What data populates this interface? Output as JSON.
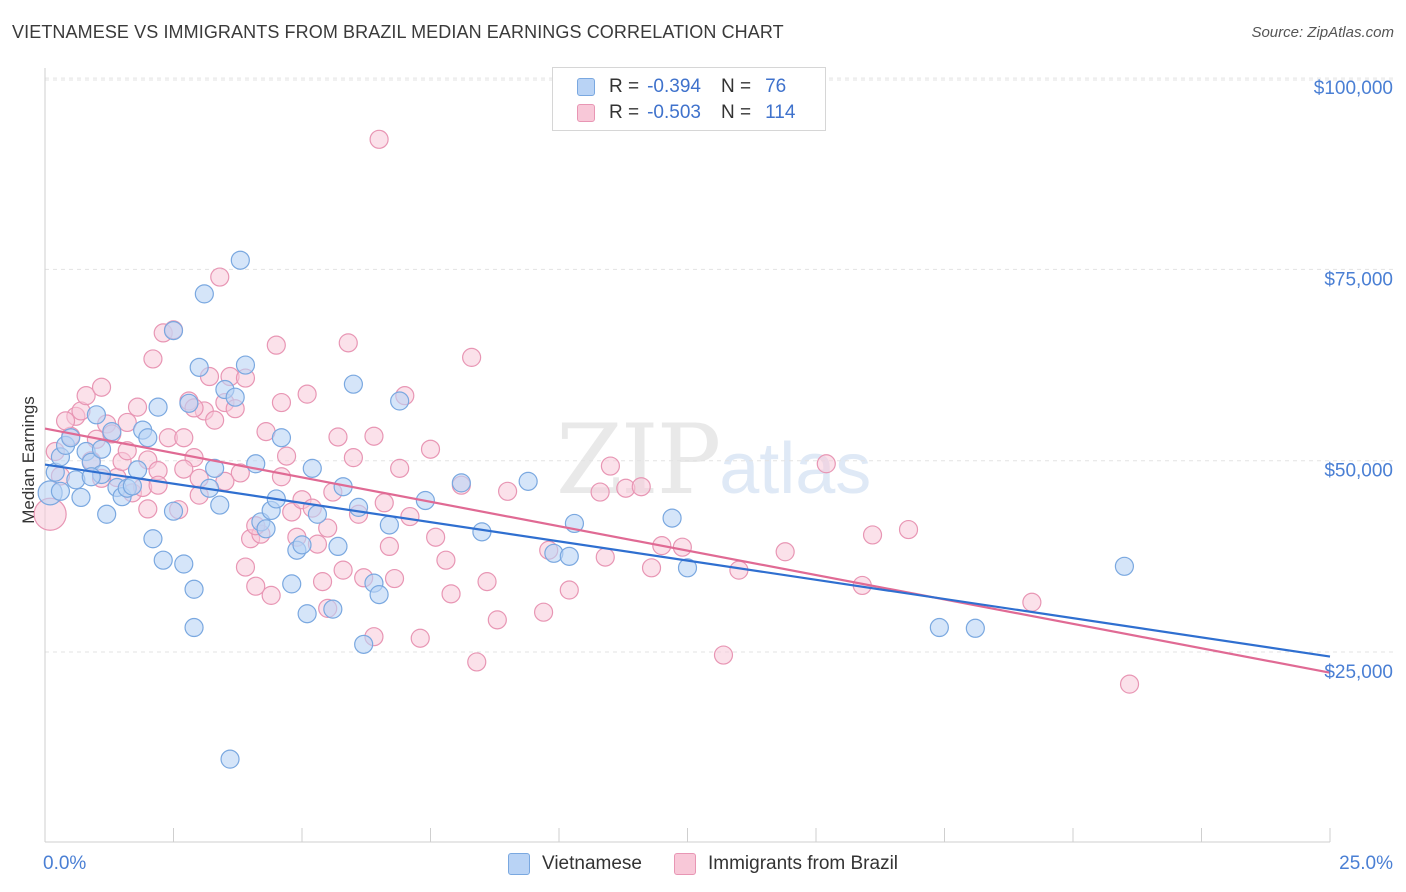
{
  "title": "VIETNAMESE VS IMMIGRANTS FROM BRAZIL MEDIAN EARNINGS CORRELATION CHART",
  "source": "Source: ZipAtlas.com",
  "watermark": {
    "zip": "ZIP",
    "atlas": "atlas"
  },
  "legend": {
    "rows": [
      {
        "r_label": "R =",
        "r_value": "-0.394",
        "n_label": "N =",
        "n_value": "76"
      },
      {
        "r_label": "R =",
        "r_value": "-0.503",
        "n_label": "N =",
        "n_value": "114"
      }
    ]
  },
  "bottom_legend": [
    "Vietnamese",
    "Immigrants from Brazil"
  ],
  "colors": {
    "blue_fill": "#b9d3f5",
    "blue_stroke": "#7aa8e0",
    "blue_line": "#2f6fd0",
    "pink_fill": "#f8c8d8",
    "pink_stroke": "#e896b4",
    "pink_line": "#e06a94",
    "grid": "#e3e3e3",
    "tick_text": "#4a7fd4"
  },
  "chart_data": {
    "type": "scatter",
    "title": "VIETNAMESE VS IMMIGRANTS FROM BRAZIL MEDIAN EARNINGS CORRELATION CHART",
    "xlabel": "",
    "ylabel": "Median Earnings",
    "xlim": [
      0,
      25
    ],
    "ylim": [
      0,
      105000
    ],
    "x_tick_labels": [
      "0.0%",
      "25.0%"
    ],
    "y_ticks": [
      25000,
      50000,
      75000,
      100000
    ],
    "y_tick_labels": [
      "$25,000",
      "$50,000",
      "$75,000",
      "$100,000"
    ],
    "grid": true,
    "legend_position": "top-center",
    "series": [
      {
        "name": "Vietnamese",
        "trend": {
          "x": [
            0,
            25
          ],
          "y": [
            49500,
            24400
          ]
        },
        "points": [
          [
            0.1,
            45800
          ],
          [
            0.2,
            48500
          ],
          [
            0.3,
            50500
          ],
          [
            0.4,
            52000
          ],
          [
            0.5,
            53000
          ],
          [
            0.6,
            47500
          ],
          [
            0.7,
            45200
          ],
          [
            0.8,
            51200
          ],
          [
            0.9,
            49800
          ],
          [
            1.0,
            56000
          ],
          [
            1.1,
            48200
          ],
          [
            1.1,
            51500
          ],
          [
            1.2,
            43000
          ],
          [
            1.3,
            53800
          ],
          [
            1.4,
            46500
          ],
          [
            1.5,
            45300
          ],
          [
            1.6,
            46400
          ],
          [
            1.8,
            48800
          ],
          [
            1.9,
            54000
          ],
          [
            2.0,
            53000
          ],
          [
            2.1,
            39800
          ],
          [
            2.2,
            57000
          ],
          [
            2.3,
            37000
          ],
          [
            2.5,
            67000
          ],
          [
            2.7,
            36500
          ],
          [
            2.8,
            57500
          ],
          [
            2.9,
            28200
          ],
          [
            2.9,
            33200
          ],
          [
            3.0,
            62200
          ],
          [
            3.1,
            71800
          ],
          [
            3.2,
            46400
          ],
          [
            3.3,
            49000
          ],
          [
            3.4,
            44200
          ],
          [
            3.5,
            59300
          ],
          [
            3.6,
            11000
          ],
          [
            3.7,
            58300
          ],
          [
            3.8,
            76200
          ],
          [
            3.9,
            62500
          ],
          [
            4.1,
            49600
          ],
          [
            4.2,
            42000
          ],
          [
            4.3,
            41100
          ],
          [
            4.4,
            43500
          ],
          [
            4.5,
            45000
          ],
          [
            4.6,
            53000
          ],
          [
            4.8,
            33900
          ],
          [
            4.9,
            38300
          ],
          [
            5.0,
            39000
          ],
          [
            5.1,
            30000
          ],
          [
            5.2,
            49000
          ],
          [
            5.3,
            43000
          ],
          [
            5.6,
            30600
          ],
          [
            5.7,
            38800
          ],
          [
            5.8,
            46600
          ],
          [
            6.0,
            60000
          ],
          [
            6.1,
            43900
          ],
          [
            6.2,
            26000
          ],
          [
            6.4,
            34000
          ],
          [
            6.5,
            32500
          ],
          [
            6.7,
            41600
          ],
          [
            6.9,
            57800
          ],
          [
            7.4,
            44800
          ],
          [
            8.1,
            47100
          ],
          [
            8.5,
            40700
          ],
          [
            9.4,
            47300
          ],
          [
            9.9,
            37900
          ],
          [
            10.2,
            37500
          ],
          [
            10.3,
            41800
          ],
          [
            12.2,
            42500
          ],
          [
            12.5,
            36000
          ],
          [
            17.4,
            28200
          ],
          [
            18.1,
            28100
          ],
          [
            21.0,
            36200
          ],
          [
            0.3,
            46000
          ],
          [
            0.9,
            47900
          ],
          [
            1.7,
            46700
          ],
          [
            2.5,
            43400
          ]
        ]
      },
      {
        "name": "Immigrants from Brazil",
        "trend": {
          "x": [
            0,
            25
          ],
          "y": [
            54200,
            22300
          ]
        },
        "points": [
          [
            0.1,
            43000
          ],
          [
            0.3,
            48000
          ],
          [
            0.5,
            53200
          ],
          [
            0.6,
            55800
          ],
          [
            0.7,
            56500
          ],
          [
            0.8,
            58500
          ],
          [
            0.9,
            50000
          ],
          [
            1.0,
            52800
          ],
          [
            1.1,
            59600
          ],
          [
            1.2,
            54800
          ],
          [
            1.3,
            53500
          ],
          [
            1.4,
            47800
          ],
          [
            1.5,
            49900
          ],
          [
            1.6,
            51300
          ],
          [
            1.7,
            45800
          ],
          [
            1.8,
            57000
          ],
          [
            1.9,
            46500
          ],
          [
            2.0,
            50100
          ],
          [
            2.1,
            63300
          ],
          [
            2.2,
            48700
          ],
          [
            2.3,
            66700
          ],
          [
            2.4,
            53000
          ],
          [
            2.5,
            67100
          ],
          [
            2.6,
            43600
          ],
          [
            2.7,
            53000
          ],
          [
            2.8,
            57800
          ],
          [
            2.9,
            50400
          ],
          [
            3.0,
            45500
          ],
          [
            3.1,
            56500
          ],
          [
            3.2,
            61000
          ],
          [
            3.3,
            55300
          ],
          [
            3.4,
            74000
          ],
          [
            3.5,
            57600
          ],
          [
            3.6,
            61000
          ],
          [
            3.7,
            56800
          ],
          [
            3.8,
            48400
          ],
          [
            3.9,
            60800
          ],
          [
            4.0,
            39800
          ],
          [
            4.1,
            33600
          ],
          [
            4.2,
            40400
          ],
          [
            4.3,
            53800
          ],
          [
            4.4,
            32400
          ],
          [
            4.5,
            65100
          ],
          [
            4.6,
            57600
          ],
          [
            4.7,
            50600
          ],
          [
            4.8,
            43300
          ],
          [
            4.9,
            40000
          ],
          [
            5.0,
            44900
          ],
          [
            5.1,
            58700
          ],
          [
            5.2,
            43800
          ],
          [
            5.3,
            39100
          ],
          [
            5.4,
            34200
          ],
          [
            5.5,
            41200
          ],
          [
            5.6,
            45900
          ],
          [
            5.7,
            53100
          ],
          [
            5.8,
            35700
          ],
          [
            5.9,
            65400
          ],
          [
            6.0,
            50400
          ],
          [
            6.1,
            43000
          ],
          [
            6.2,
            34700
          ],
          [
            6.4,
            53200
          ],
          [
            6.6,
            44500
          ],
          [
            6.7,
            38800
          ],
          [
            6.8,
            34600
          ],
          [
            6.9,
            49000
          ],
          [
            7.0,
            58500
          ],
          [
            7.1,
            42700
          ],
          [
            7.3,
            26800
          ],
          [
            7.5,
            51500
          ],
          [
            7.6,
            40000
          ],
          [
            7.8,
            37000
          ],
          [
            7.9,
            32600
          ],
          [
            8.1,
            46800
          ],
          [
            8.3,
            63500
          ],
          [
            8.4,
            23700
          ],
          [
            8.6,
            34200
          ],
          [
            8.8,
            29200
          ],
          [
            9.0,
            46000
          ],
          [
            9.7,
            30200
          ],
          [
            9.8,
            38300
          ],
          [
            10.2,
            33100
          ],
          [
            10.8,
            45900
          ],
          [
            11.0,
            49300
          ],
          [
            11.3,
            46400
          ],
          [
            11.6,
            46600
          ],
          [
            11.8,
            36000
          ],
          [
            12.0,
            38900
          ],
          [
            12.4,
            38700
          ],
          [
            13.2,
            24600
          ],
          [
            13.5,
            35700
          ],
          [
            14.4,
            38100
          ],
          [
            15.2,
            49600
          ],
          [
            15.9,
            33700
          ],
          [
            16.1,
            40300
          ],
          [
            16.8,
            41000
          ],
          [
            19.2,
            31500
          ],
          [
            21.1,
            20800
          ],
          [
            6.5,
            92000
          ],
          [
            0.2,
            51200
          ],
          [
            0.4,
            55200
          ],
          [
            1.1,
            47700
          ],
          [
            1.6,
            55000
          ],
          [
            2.9,
            56900
          ],
          [
            4.1,
            41500
          ],
          [
            4.6,
            47900
          ],
          [
            3.5,
            47300
          ],
          [
            2.0,
            43700
          ],
          [
            2.7,
            48900
          ],
          [
            3.0,
            47700
          ],
          [
            3.9,
            36100
          ],
          [
            5.5,
            30700
          ],
          [
            6.4,
            27000
          ],
          [
            10.9,
            37400
          ],
          [
            2.2,
            46800
          ]
        ]
      }
    ]
  }
}
